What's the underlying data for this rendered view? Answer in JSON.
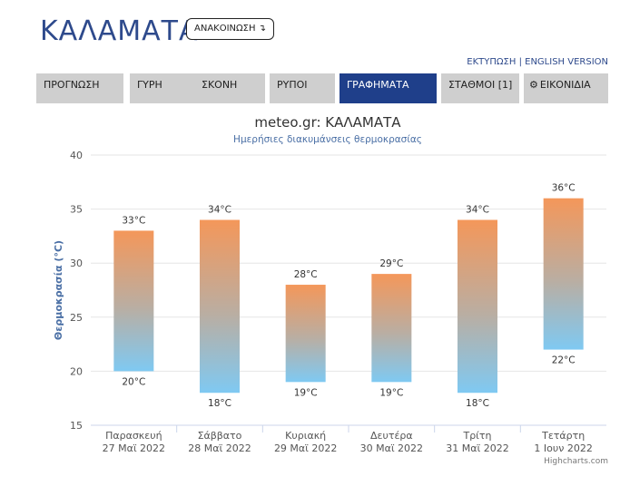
{
  "header": {
    "city": "ΚΑΛΑΜΑΤΑ",
    "announcement_label": "ΑΝΑΚΟΙΝΩΣΗ ↴",
    "print_link": "ΕΚΤΥΠΩΣΗ",
    "separator": "|",
    "english_link": "ENGLISH VERSION"
  },
  "tabs": [
    {
      "label": "ΠΡΟΓΝΩΣΗ",
      "active": false
    },
    {
      "label": "ΓΥΡΗ",
      "active": false
    },
    {
      "label": "ΣΚΟΝΗ",
      "active": false
    },
    {
      "label": "ΡΥΠΟΙ",
      "active": false
    },
    {
      "label": "ΓΡΑΦΗΜΑΤΑ",
      "active": true
    },
    {
      "label": "ΣΤΑΘΜΟΙ [1]",
      "active": false
    },
    {
      "label": "ΕΙΚΟΝΙΔΙΑ",
      "active": false,
      "icon": "gear-icon"
    }
  ],
  "chart_data": {
    "type": "bar",
    "subtype": "range-column",
    "title": "meteo.gr: ΚΑΛΑΜΑΤΑ",
    "subtitle": "Ημερήσιες διακυμάνσεις θερμοκρασίας",
    "ylabel": "Θερμοκρασία (°C)",
    "ylim": [
      15,
      40
    ],
    "yticks": [
      15,
      20,
      25,
      30,
      35,
      40
    ],
    "grid": true,
    "credits": "Highcharts.com",
    "colors": {
      "high": "#f4975a",
      "low": "#7fc9f2"
    },
    "categories": [
      {
        "day": "Παρασκευή",
        "date": "27 Μαϊ 2022"
      },
      {
        "day": "Σάββατο",
        "date": "28 Μαϊ 2022"
      },
      {
        "day": "Κυριακή",
        "date": "29 Μαϊ 2022"
      },
      {
        "day": "Δευτέρα",
        "date": "30 Μαϊ 2022"
      },
      {
        "day": "Τρίτη",
        "date": "31 Μαϊ 2022"
      },
      {
        "day": "Τετάρτη",
        "date": "1 Ιουν 2022"
      }
    ],
    "low": [
      20,
      18,
      19,
      19,
      18,
      22
    ],
    "high": [
      33,
      34,
      28,
      29,
      34,
      36
    ],
    "unit": "°C"
  }
}
